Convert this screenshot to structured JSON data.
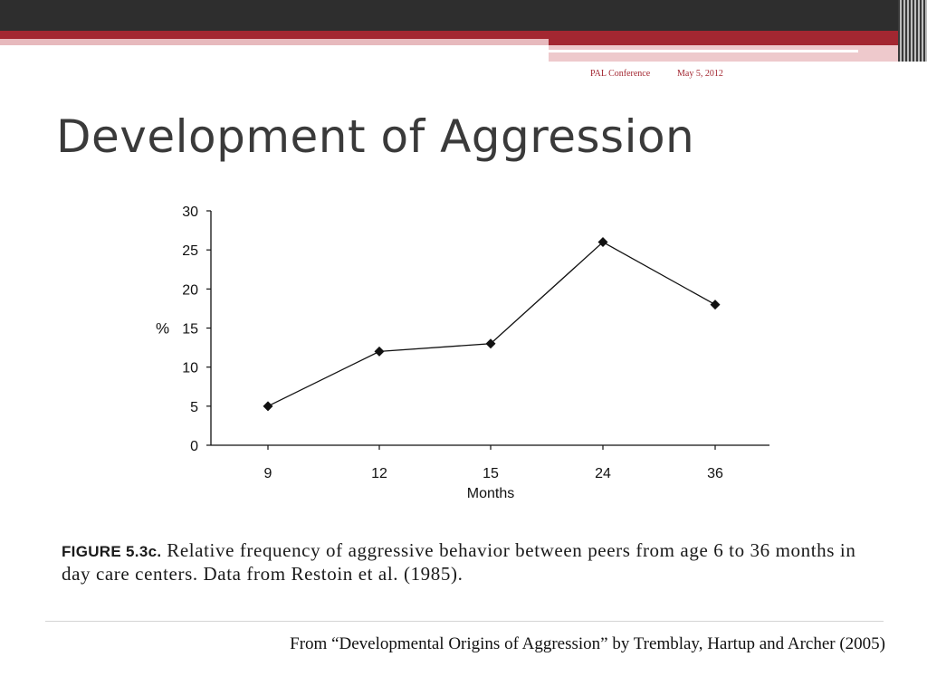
{
  "header": {
    "conference": "PAL Conference",
    "date": "May 5, 2012"
  },
  "slide": {
    "title": "Development of Aggression",
    "caption_label": "FIGURE 5.3c.",
    "caption_text": "Relative frequency of aggressive behavior between peers from age 6 to 36 months in day care centers. Data from Restoin et al. (1985).",
    "source": "From  “Developmental Origins of Aggression” by Tremblay, Hartup and Archer (2005)"
  },
  "chart_data": {
    "type": "line",
    "categories": [
      "9",
      "12",
      "15",
      "24",
      "36"
    ],
    "values": [
      5,
      12,
      13,
      26,
      18
    ],
    "xlabel": "Months",
    "ylabel": "%",
    "ylim": [
      0,
      30
    ],
    "yticks": [
      0,
      5,
      10,
      15,
      20,
      25,
      30
    ],
    "marker": "diamond",
    "grid": false,
    "colors": {
      "line": "#111111"
    }
  }
}
